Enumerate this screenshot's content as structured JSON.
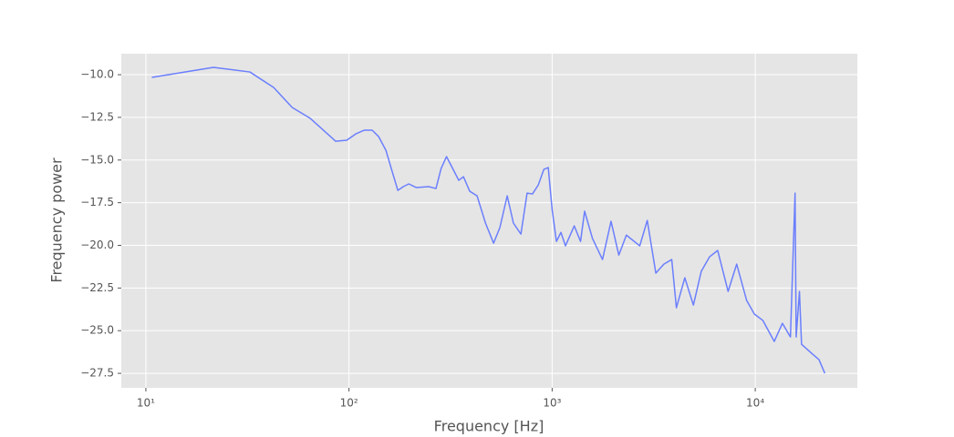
{
  "chart_data": {
    "type": "line",
    "xlabel": "Frequency [Hz]",
    "ylabel": "Frequency power",
    "xscale": "log",
    "grid": true,
    "xlim": [
      7.57,
      31800
    ],
    "ylim": [
      -28.35,
      -8.77
    ],
    "xticks": [
      {
        "value": 10,
        "label": "10¹"
      },
      {
        "value": 100,
        "label": "10²"
      },
      {
        "value": 1000,
        "label": "10³"
      },
      {
        "value": 10000,
        "label": "10⁴"
      }
    ],
    "yticks": [
      {
        "value": -10,
        "label": "−10.0"
      },
      {
        "value": -12.5,
        "label": "−12.5"
      },
      {
        "value": -15,
        "label": "−15.0"
      },
      {
        "value": -17.5,
        "label": "−17.5"
      },
      {
        "value": -20,
        "label": "−20.0"
      },
      {
        "value": -22.5,
        "label": "−22.5"
      },
      {
        "value": -25,
        "label": "−25.0"
      },
      {
        "value": -27.5,
        "label": "−27.5"
      }
    ],
    "x": [
      10.7,
      21.5,
      32.5,
      42.6,
      52.5,
      64.5,
      86,
      97.5,
      108,
      119,
      130,
      140,
      152,
      163,
      174,
      185,
      197,
      214,
      247,
      268,
      284,
      302,
      324,
      347,
      366,
      393,
      427,
      470,
      515,
      553,
      601,
      645,
      702,
      753,
      800,
      855,
      910,
      957,
      1000,
      1050,
      1105,
      1163,
      1285,
      1380,
      1445,
      1580,
      1770,
      1950,
      2130,
      2320,
      2700,
      2940,
      3240,
      3550,
      3880,
      4090,
      4500,
      4960,
      5420,
      5960,
      6530,
      7350,
      8100,
      9070,
      9900,
      10900,
      12400,
      13600,
      14900,
      15700,
      15900,
      16500,
      16900,
      18970,
      20600,
      22000
    ],
    "series": [
      {
        "color": "#6b7ffd",
        "values": [
          -10.16,
          -9.57,
          -9.84,
          -10.75,
          -11.92,
          -12.56,
          -13.9,
          -13.84,
          -13.47,
          -13.25,
          -13.25,
          -13.63,
          -14.43,
          -15.66,
          -16.78,
          -16.56,
          -16.4,
          -16.61,
          -16.56,
          -16.67,
          -15.5,
          -14.8,
          -15.5,
          -16.19,
          -15.98,
          -16.83,
          -17.1,
          -18.7,
          -19.87,
          -18.96,
          -17.1,
          -18.7,
          -19.34,
          -16.94,
          -16.99,
          -16.46,
          -15.55,
          -15.44,
          -17.9,
          -19.77,
          -19.24,
          -20.03,
          -18.86,
          -19.77,
          -18.0,
          -19.6,
          -20.83,
          -18.59,
          -20.57,
          -19.4,
          -20.03,
          -18.54,
          -21.63,
          -21.1,
          -20.83,
          -23.66,
          -21.9,
          -23.5,
          -21.53,
          -20.67,
          -20.3,
          -22.7,
          -21.1,
          -23.23,
          -24.03,
          -24.4,
          -25.63,
          -24.57,
          -25.37,
          -16.94,
          -25.37,
          -22.7,
          -25.8,
          -26.33,
          -26.7,
          -27.5
        ]
      }
    ]
  }
}
